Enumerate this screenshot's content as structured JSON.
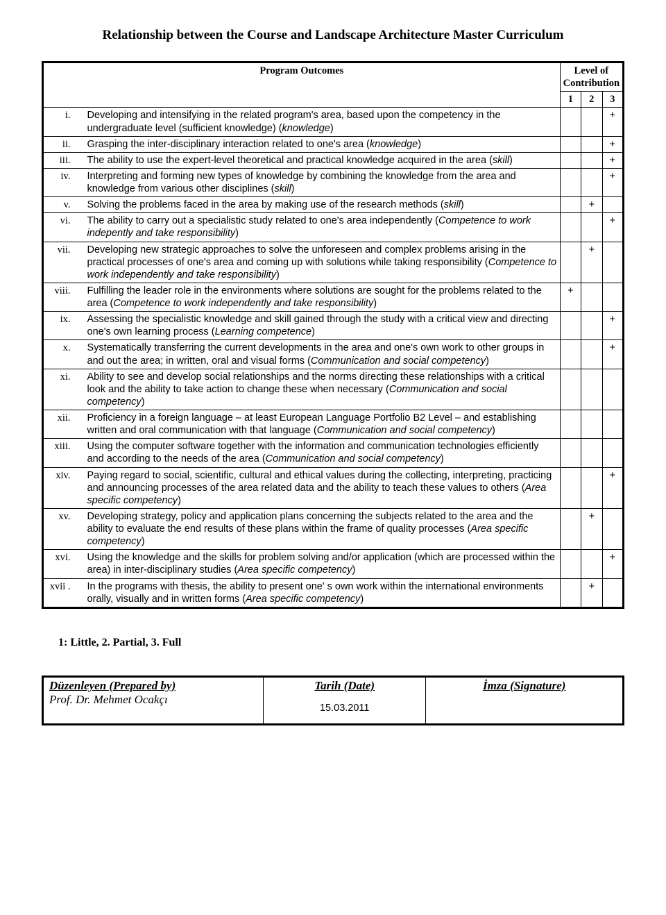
{
  "title": "Relationship between the Course and Landscape Architecture Master Curriculum",
  "header": {
    "outcomes": "Program Outcomes",
    "level": "Level of Contribution",
    "lvl1": "1",
    "lvl2": "2",
    "lvl3": "3"
  },
  "rows": [
    {
      "num": "i.",
      "l1": "",
      "l2": "",
      "l3": "+",
      "html": "Developing and intensifying in the related program's area, based upon the competency in the undergraduate level (sufficient knowledge) (<span class='italic'>knowledge</span>)"
    },
    {
      "num": "ii.",
      "l1": "",
      "l2": "",
      "l3": "+",
      "html": "Grasping the inter-disciplinary interaction related to one's area (<span class='italic'>knowledge</span>)"
    },
    {
      "num": "iii.",
      "l1": "",
      "l2": "",
      "l3": "+",
      "html": "The ability to use the expert-level theoretical and practical knowledge acquired in the area (<span class='italic'>skill</span>)"
    },
    {
      "num": "iv.",
      "l1": "",
      "l2": "",
      "l3": "+",
      "html": "Interpreting and forming new types of knowledge by combining the knowledge from the area and knowledge from various other disciplines (<span class='italic'>skill</span>)"
    },
    {
      "num": "v.",
      "l1": "",
      "l2": "+",
      "l3": "",
      "html": "Solving the problems faced in the area by making use of the research methods (<span class='italic'>skill</span>)"
    },
    {
      "num": "vi.",
      "l1": "",
      "l2": "",
      "l3": "+",
      "html": "The ability to carry out a specialistic study related to one's area independently (<span class='italic'>Competence to work indepently and take responsibility</span>)"
    },
    {
      "num": "vii.",
      "l1": "",
      "l2": "+",
      "l3": "",
      "html": "Developing new strategic approaches to solve the unforeseen and complex problems arising in the practical processes of one's area and coming up with solutions while taking responsibility (<span class='italic'>Competence to work independently and take responsibility</span>)"
    },
    {
      "num": "viii.",
      "l1": "+",
      "l2": "",
      "l3": "",
      "html": "Fulfilling the leader role in the environments where solutions are sought for the problems related to the area (<span class='italic'>Competence to work independently and take responsibility</span>)"
    },
    {
      "num": "ix.",
      "l1": "",
      "l2": "",
      "l3": "+",
      "html": "Assessing the specialistic knowledge and skill gained through the study with a critical view and directing one's own learning process (<span class='italic'>Learning competence</span>)"
    },
    {
      "num": "x.",
      "l1": "",
      "l2": "",
      "l3": "+",
      "html": "Systematically transferring the current developments in the area and one's own work to other groups in and out the area; in written, oral and visual forms (<span class='italic'>Communication and social competency</span>)"
    },
    {
      "num": "xi.",
      "l1": "",
      "l2": "",
      "l3": "",
      "html": "Ability to see and develop social relationships and the norms directing these relationships with a critical look and the ability to take action to change these when necessary (<span class='italic'>Communication and social competency</span>)"
    },
    {
      "num": "xii.",
      "l1": "",
      "l2": "",
      "l3": "",
      "html": "Proficiency in a foreign language – at least European Language Portfolio B2 Level – and establishing written and oral communication with that language (<span class='italic'>Communication and social competency</span>)"
    },
    {
      "num": "xiii.",
      "l1": "",
      "l2": "",
      "l3": "",
      "html": "Using the computer software together with the information and communication technologies efficiently and according to the needs of the area (<span class='italic'>Communication and social competency</span>)"
    },
    {
      "num": "xiv.",
      "l1": "",
      "l2": "",
      "l3": "+",
      "html": "Paying regard to social, scientific, cultural and ethical values during the collecting, interpreting, practicing and announcing processes of the area related data and the ability to teach these values to others (<span class='italic'>Area specific competency</span>)"
    },
    {
      "num": "xv.",
      "l1": "",
      "l2": "+",
      "l3": "",
      "html": "Developing strategy, policy and application plans concerning the subjects related to the area and the ability to evaluate the end results of these plans within the frame of quality processes (<span class='italic'>Area specific competency</span>)"
    },
    {
      "num": "xvi.",
      "l1": "",
      "l2": "",
      "l3": "+",
      "html": "Using the knowledge and the skills for problem solving and/or application (which are processed within the area) in inter-disciplinary studies (<span class='italic'>Area specific competency</span>)"
    },
    {
      "num": "xvii .",
      "l1": "",
      "l2": "+",
      "l3": "",
      "html": "In the programs with thesis, the ability to present one' s own work within the international environments orally, visually and in written forms (<span class='italic'>Area specific competency</span>)"
    }
  ],
  "legend": "1: Little, 2. Partial, 3. Full",
  "footer": {
    "prepared_label": "Düzenleyen (Prepared by)",
    "prepared_name": "Prof. Dr. Mehmet Ocakçı",
    "date_label": "Tarih (Date)",
    "date_value": "15.03.2011",
    "sign_label": "İmza (Signature)"
  }
}
